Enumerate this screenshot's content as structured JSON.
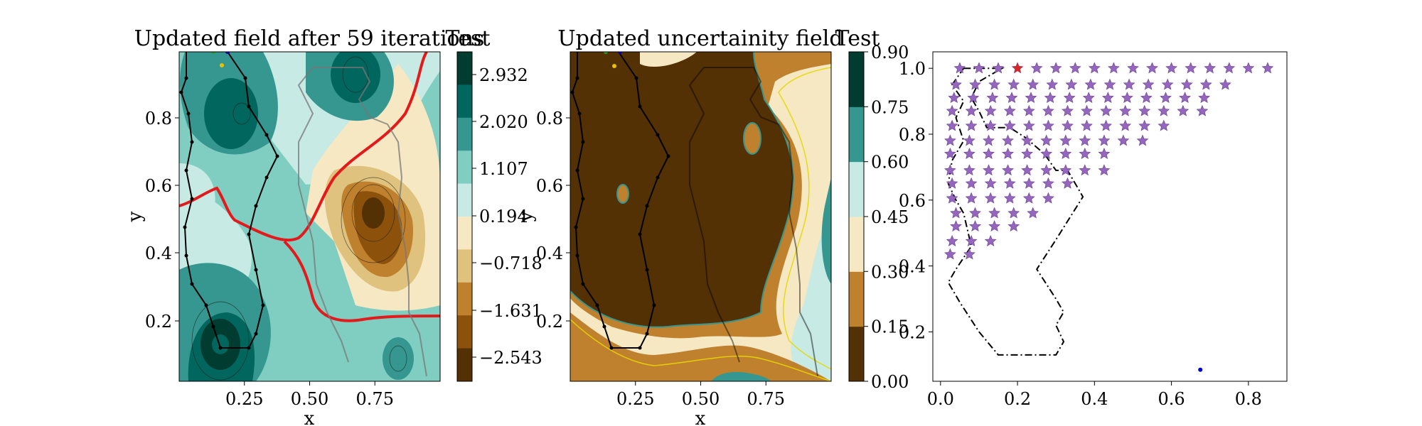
{
  "chart_data": [
    {
      "type": "heatmap",
      "title": "Updated field after 59 iterations",
      "xlabel": "x",
      "ylabel": "y",
      "xlim": [
        0.0,
        1.0
      ],
      "ylim": [
        0.0,
        1.0
      ],
      "xticks": [
        "0.25",
        "0.50",
        "0.75"
      ],
      "yticks": [
        "0.2",
        "0.4",
        "0.6",
        "0.8"
      ],
      "colorbar": {
        "title": "Test",
        "ticks": [
          "2.932",
          "2.020",
          "1.107",
          "0.194",
          "−0.718",
          "−1.631",
          "−2.543"
        ],
        "colors": [
          "#003c30",
          "#01665e",
          "#35978f",
          "#80cdc1",
          "#c7eae5",
          "#f6e8c3",
          "#dfc27d",
          "#bf812d",
          "#8c510a",
          "#543005"
        ]
      },
      "annotations": [
        "red contour line",
        "black path with waypoints",
        "gray path with waypoints"
      ]
    },
    {
      "type": "heatmap",
      "title": "Updated uncertainity field",
      "xlabel": "x",
      "ylabel": "y",
      "xlim": [
        0.0,
        1.0
      ],
      "ylim": [
        0.0,
        1.0
      ],
      "xticks": [
        "0.25",
        "0.50",
        "0.75"
      ],
      "yticks": [
        "0.2",
        "0.4",
        "0.6",
        "0.8"
      ],
      "colorbar": {
        "title": "Test",
        "ticks": [
          "0.00",
          "0.15",
          "0.30",
          "0.45",
          "0.60",
          "0.75",
          "0.90"
        ],
        "colors": [
          "#543005",
          "#bf812d",
          "#f6e8c3",
          "#c7eae5",
          "#35978f",
          "#003c30"
        ]
      }
    },
    {
      "type": "scatter",
      "title": "",
      "xlabel": "",
      "ylabel": "",
      "xlim": [
        -0.02,
        0.9
      ],
      "ylim": [
        0.05,
        1.05
      ],
      "xticks": [
        "0.0",
        "0.2",
        "0.4",
        "0.6",
        "0.8"
      ],
      "yticks": [
        "0.2",
        "0.4",
        "0.6",
        "0.8",
        "1.0"
      ],
      "colors": {
        "star": "#9467bd",
        "current": "#d62728",
        "marker": "#0000cc"
      },
      "series": [
        {
          "marker": "star",
          "rows": [
            {
              "y": 1.0,
              "x_start": 0.05,
              "x_end": 0.85
            },
            {
              "y": 0.95,
              "x_start": 0.04,
              "x_end": 0.78
            },
            {
              "y": 0.91,
              "x_start": 0.035,
              "x_end": 0.72
            },
            {
              "y": 0.87,
              "x_start": 0.03,
              "x_end": 0.68
            },
            {
              "y": 0.825,
              "x_start": 0.03,
              "x_end": 0.62
            },
            {
              "y": 0.78,
              "x_start": 0.025,
              "x_end": 0.53
            },
            {
              "y": 0.74,
              "x_start": 0.025,
              "x_end": 0.46
            },
            {
              "y": 0.69,
              "x_start": 0.025,
              "x_end": 0.43
            },
            {
              "y": 0.65,
              "x_start": 0.03,
              "x_end": 0.36
            },
            {
              "y": 0.605,
              "x_start": 0.03,
              "x_end": 0.31
            },
            {
              "y": 0.56,
              "x_start": 0.04,
              "x_end": 0.26
            },
            {
              "y": 0.52,
              "x_start": 0.04,
              "x_end": 0.2
            },
            {
              "y": 0.475,
              "x_start": 0.03,
              "x_end": 0.13
            },
            {
              "y": 0.435,
              "x_start": 0.025,
              "x_end": 0.08
            }
          ],
          "spacing": 0.05
        },
        {
          "marker": "star",
          "color": "current",
          "points": [
            [
              0.2,
              1.0
            ]
          ]
        },
        {
          "marker": "dot",
          "color": "marker",
          "points": [
            [
              0.675,
              0.085
            ]
          ]
        }
      ],
      "boundary": [
        [
          0.06,
          1.0
        ],
        [
          0.16,
          1.0
        ],
        [
          0.1,
          0.96
        ],
        [
          0.08,
          0.91
        ],
        [
          0.1,
          0.87
        ],
        [
          0.12,
          0.82
        ],
        [
          0.18,
          0.82
        ],
        [
          0.22,
          0.79
        ],
        [
          0.27,
          0.74
        ],
        [
          0.3,
          0.69
        ],
        [
          0.33,
          0.69
        ],
        [
          0.37,
          0.61
        ],
        [
          0.3,
          0.48
        ],
        [
          0.25,
          0.39
        ],
        [
          0.3,
          0.3
        ],
        [
          0.32,
          0.26
        ],
        [
          0.3,
          0.22
        ],
        [
          0.32,
          0.17
        ],
        [
          0.3,
          0.13
        ],
        [
          0.15,
          0.13
        ],
        [
          0.1,
          0.2
        ],
        [
          0.05,
          0.29
        ],
        [
          0.02,
          0.35
        ],
        [
          0.04,
          0.39
        ],
        [
          0.08,
          0.46
        ],
        [
          0.06,
          0.56
        ],
        [
          0.04,
          0.6
        ],
        [
          0.02,
          0.65
        ],
        [
          0.03,
          0.72
        ],
        [
          0.06,
          0.78
        ],
        [
          0.04,
          0.85
        ],
        [
          0.06,
          0.9
        ],
        [
          0.03,
          0.95
        ],
        [
          0.06,
          1.0
        ]
      ]
    }
  ]
}
